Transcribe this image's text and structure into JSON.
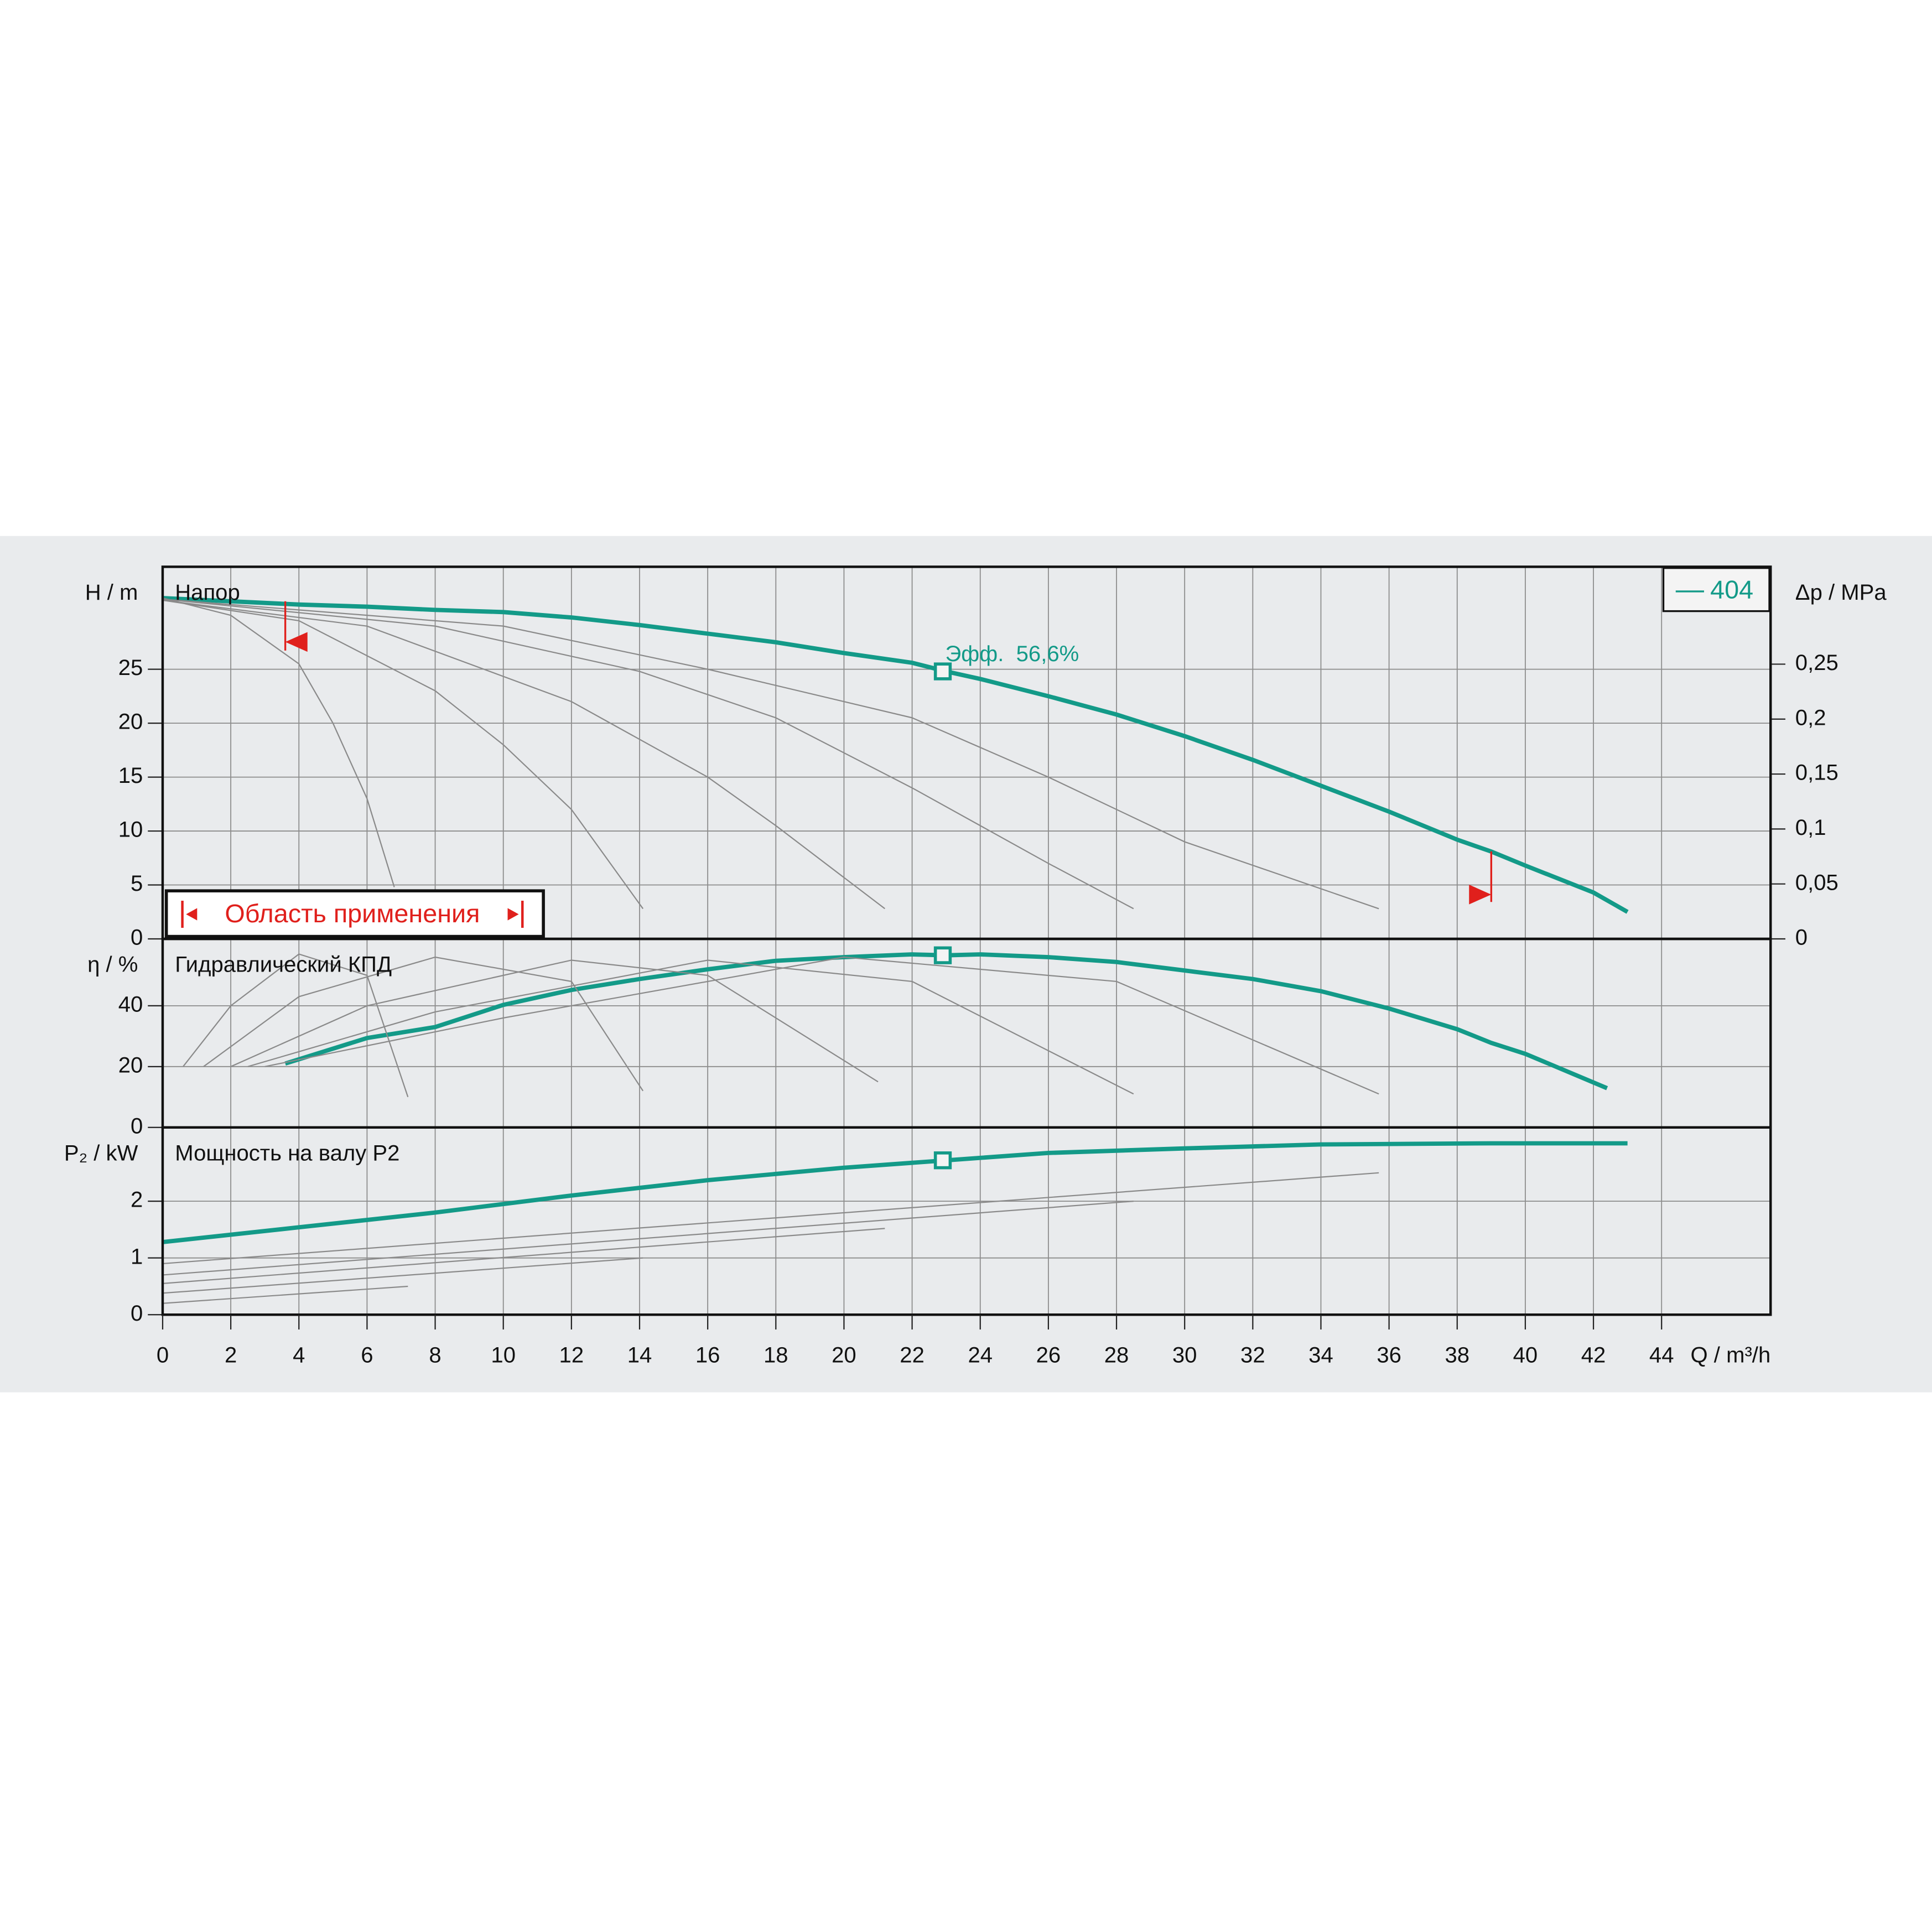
{
  "chart_data": [
    {
      "type": "line",
      "title": "Напор",
      "ylabel": "H / m",
      "y2label": "Δp / MPa",
      "xlim": [
        0,
        47.2
      ],
      "ylim": [
        0,
        34.5
      ],
      "yticks": [
        0,
        5,
        10,
        15,
        20,
        25
      ],
      "y2lim": [
        0,
        0.3386
      ],
      "y2ticks": [
        0,
        {
          "value": 0.05,
          "label": "0,05"
        },
        {
          "value": 0.1,
          "label": "0,1"
        },
        {
          "value": 0.15,
          "label": "0,15"
        },
        {
          "value": 0.2,
          "label": "0,2"
        },
        {
          "value": 0.25,
          "label": "0,25"
        }
      ],
      "grid": true,
      "legend_position": "upper right",
      "annotation": "Эфф.  56,6%",
      "operating_point": {
        "x": 22.9,
        "y": 24.8
      },
      "operating_range": {
        "label": "Область применения",
        "min": 3.6,
        "max": 39
      },
      "series": [
        {
          "name": "404",
          "color": "#139a88",
          "x": [
            0,
            2,
            4,
            6,
            8,
            10,
            12,
            14,
            16,
            18,
            20,
            22,
            23,
            24,
            26,
            28,
            30,
            32,
            34,
            36,
            38,
            39,
            40,
            42,
            43
          ],
          "values": [
            31.6,
            31.3,
            31.0,
            30.8,
            30.5,
            30.3,
            29.8,
            29.1,
            28.3,
            27.5,
            26.5,
            25.6,
            24.8,
            24.1,
            22.5,
            20.8,
            18.8,
            16.6,
            14.2,
            11.8,
            9.2,
            8.1,
            6.8,
            4.3,
            2.5
          ]
        },
        {
          "color": "#8a8a8a",
          "x": [
            0,
            2,
            4,
            5,
            6,
            6.8
          ],
          "values": [
            31.6,
            30,
            25.5,
            20,
            13,
            4.8
          ]
        },
        {
          "color": "#8a8a8a",
          "x": [
            0,
            4,
            8,
            10,
            12,
            14.1
          ],
          "values": [
            31.4,
            29.5,
            23,
            18,
            12,
            2.8
          ]
        },
        {
          "color": "#8a8a8a",
          "x": [
            0,
            6,
            12,
            16,
            18,
            21.2
          ],
          "values": [
            31.4,
            29,
            22,
            15,
            10.5,
            2.8
          ]
        },
        {
          "color": "#8a8a8a",
          "x": [
            0,
            8,
            14,
            18,
            22,
            26,
            28.5
          ],
          "values": [
            31.5,
            29,
            24.8,
            20.5,
            14,
            7,
            2.8
          ]
        },
        {
          "color": "#8a8a8a",
          "x": [
            0,
            10,
            16,
            22,
            26,
            30,
            35.7
          ],
          "values": [
            31.5,
            29,
            25,
            20.5,
            15,
            9,
            2.8
          ]
        }
      ]
    },
    {
      "type": "line",
      "title": "Гидравлический КПД",
      "ylabel": "η / %",
      "xlim": [
        0,
        47.2
      ],
      "ylim": [
        0,
        62
      ],
      "yticks": [
        0,
        20,
        40
      ],
      "grid": true,
      "operating_point": {
        "x": 22.9,
        "y": 56.6
      },
      "series": [
        {
          "color": "#139a88",
          "x": [
            3.6,
            6,
            8,
            10,
            12,
            14,
            16,
            18,
            20,
            22,
            23,
            24,
            26,
            28,
            30,
            32,
            34,
            36,
            38,
            39,
            40,
            42.4
          ],
          "values": [
            21,
            29.4,
            33,
            40.3,
            45.2,
            48.8,
            52,
            54.8,
            56,
            56.9,
            56.6,
            56.9,
            56,
            54.4,
            51.6,
            48.8,
            44.8,
            39.1,
            32.3,
            27.8,
            24.2,
            12.9
          ]
        },
        {
          "color": "#8a8a8a",
          "x": [
            0.6,
            2,
            4,
            6,
            7.2
          ],
          "values": [
            20,
            40,
            57,
            50,
            10
          ]
        },
        {
          "color": "#8a8a8a",
          "x": [
            1.2,
            4,
            8,
            12,
            14.1
          ],
          "values": [
            20,
            43,
            56,
            48,
            12
          ]
        },
        {
          "color": "#8a8a8a",
          "x": [
            2,
            6,
            12,
            16,
            21
          ],
          "values": [
            20,
            40,
            55,
            50,
            15
          ]
        },
        {
          "color": "#8a8a8a",
          "x": [
            2.5,
            8,
            16,
            22,
            28.5
          ],
          "values": [
            20,
            38,
            55,
            48,
            11
          ]
        },
        {
          "color": "#8a8a8a",
          "x": [
            3,
            10,
            20,
            28,
            35.7
          ],
          "values": [
            20,
            36,
            56,
            48,
            11
          ]
        }
      ]
    },
    {
      "type": "line",
      "title": "Мощность на валу P2",
      "ylabel": "P₂ / kW",
      "xlabel": "Q / m³/h",
      "xlim": [
        0,
        47.2
      ],
      "ylim": [
        0,
        3.3
      ],
      "yticks": [
        0,
        1,
        2
      ],
      "xticks": [
        0,
        2,
        4,
        6,
        8,
        10,
        12,
        14,
        16,
        18,
        20,
        22,
        24,
        26,
        28,
        30,
        32,
        34,
        36,
        38,
        40,
        42,
        44
      ],
      "grid": true,
      "operating_point": {
        "x": 22.9,
        "y": 2.72
      },
      "series": [
        {
          "color": "#139a88",
          "x": [
            0,
            4,
            8,
            12,
            16,
            20,
            23,
            26,
            30,
            34,
            39,
            43
          ],
          "values": [
            1.28,
            1.54,
            1.8,
            2.1,
            2.37,
            2.59,
            2.72,
            2.85,
            2.93,
            3.0,
            3.02,
            3.02
          ]
        },
        {
          "color": "#8a8a8a",
          "x": [
            0,
            7.2
          ],
          "values": [
            0.2,
            0.5
          ]
        },
        {
          "color": "#8a8a8a",
          "x": [
            0,
            14.1
          ],
          "values": [
            0.38,
            1.0
          ]
        },
        {
          "color": "#8a8a8a",
          "x": [
            0,
            21.2
          ],
          "values": [
            0.55,
            1.52
          ]
        },
        {
          "color": "#8a8a8a",
          "x": [
            0,
            28.5
          ],
          "values": [
            0.7,
            2.0
          ]
        },
        {
          "color": "#8a8a8a",
          "x": [
            0,
            35.7
          ],
          "values": [
            0.9,
            2.5
          ]
        }
      ]
    }
  ]
}
